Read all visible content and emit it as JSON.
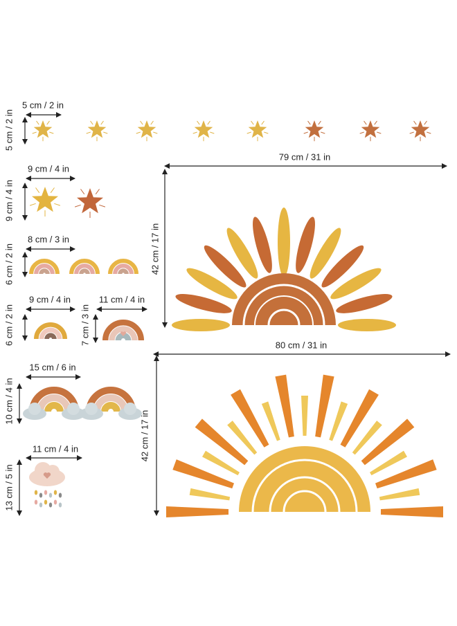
{
  "items": [
    {
      "width": "5 cm / 2 in",
      "height": "5 cm / 2 in"
    },
    {
      "width": "9 cm / 4 in",
      "height": "9 cm / 4 in"
    },
    {
      "width": "8 cm / 3 in",
      "height": "6 cm / 2 in"
    },
    {
      "width": "9 cm / 4 in",
      "height": "6 cm / 2 in"
    },
    {
      "width": "11 cm / 4 in",
      "height": "7 cm / 3 in"
    },
    {
      "width": "15 cm / 6 in",
      "height": "10 cm / 4 in"
    },
    {
      "width": "11 cm / 4 in",
      "height": "13 cm / 5 in"
    },
    {
      "width": "79 cm / 31 in",
      "height": "42 cm / 17 in"
    },
    {
      "width": "80 cm / 31 in",
      "height": "42 cm / 17 in"
    }
  ]
}
